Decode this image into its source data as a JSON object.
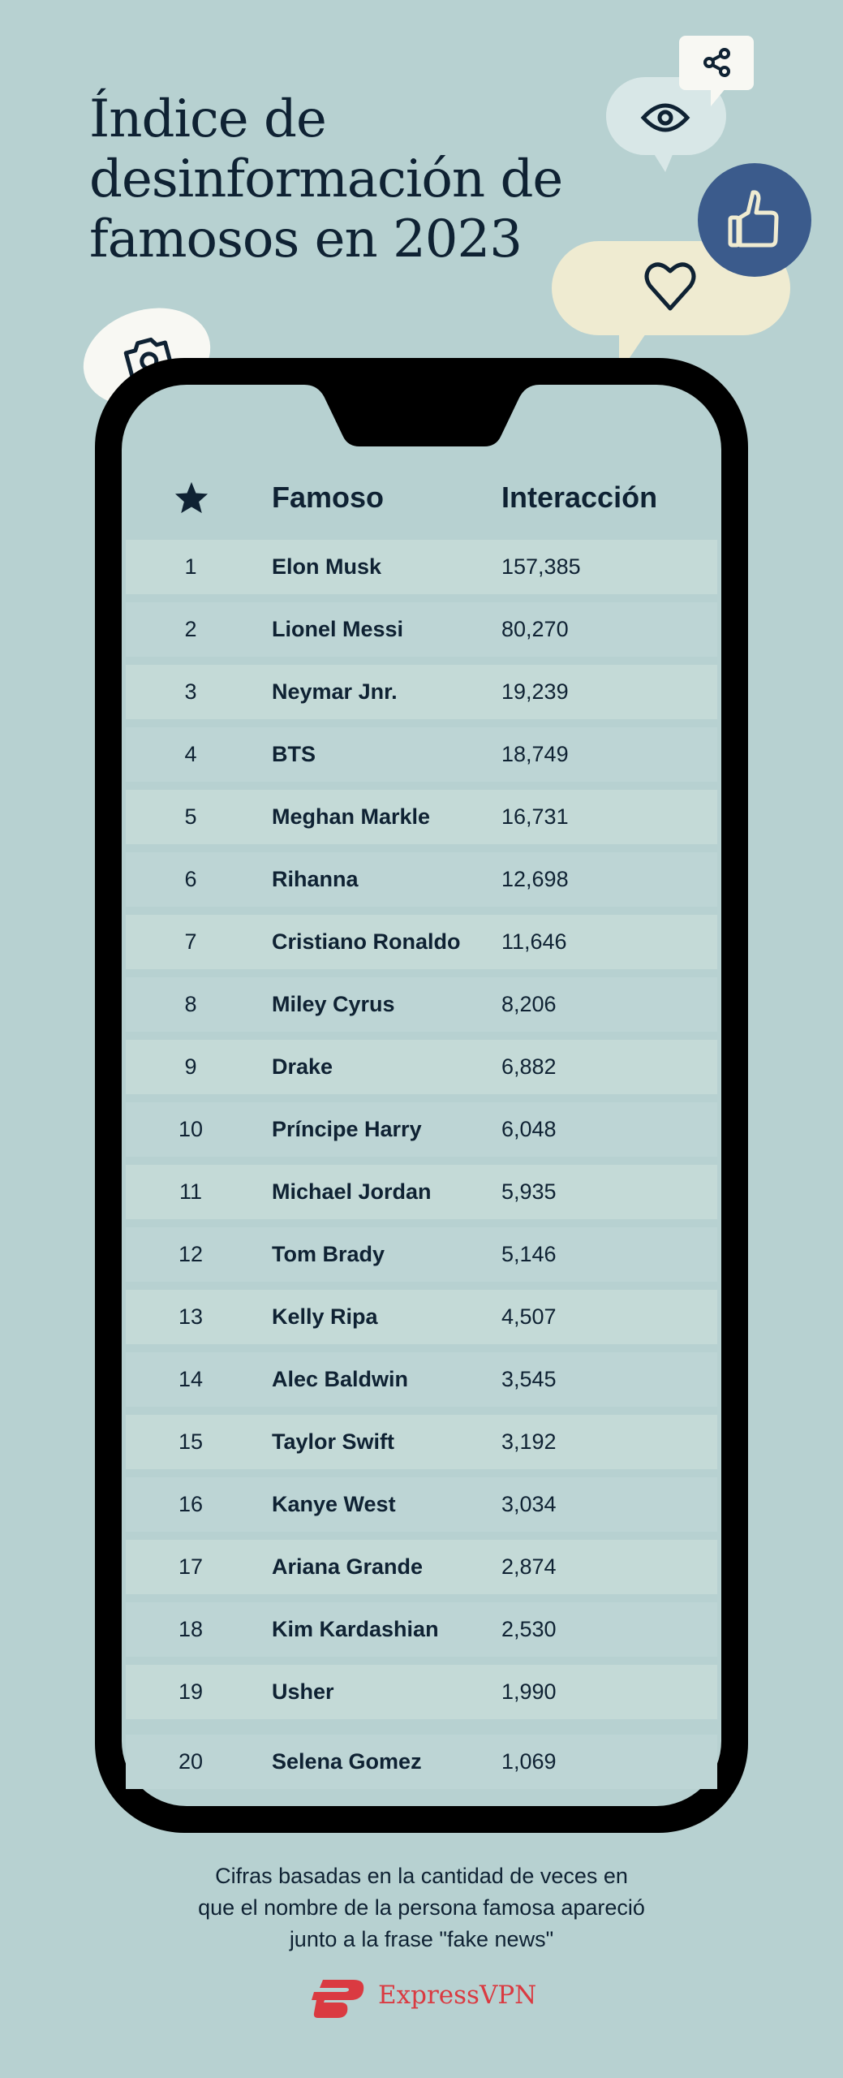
{
  "title": {
    "lines": [
      "Índice de",
      "desinformación de",
      "famosos en 2023"
    ]
  },
  "icons": {
    "share": "share-icon",
    "eye": "eye-icon",
    "thumb": "thumbs-up-icon",
    "heart": "heart-icon",
    "camera": "camera-icon",
    "star": "star-icon"
  },
  "colors": {
    "background": "#b7d1d1",
    "text": "#0f2233",
    "phone": "#000000",
    "thumb_bubble": "#3b5b8c",
    "heart_bubble": "#efebd1",
    "eye_bubble": "#d8e7e7",
    "white_bubble": "#f8f8f3",
    "brand": "#da3a41"
  },
  "table": {
    "headers": {
      "rank_icon": "star-icon",
      "name": "Famoso",
      "value": "Interacción"
    },
    "rows": [
      {
        "rank": "1",
        "name": "Elon Musk",
        "value": "157,385"
      },
      {
        "rank": "2",
        "name": "Lionel Messi",
        "value": "80,270"
      },
      {
        "rank": "3",
        "name": "Neymar Jnr.",
        "value": "19,239"
      },
      {
        "rank": "4",
        "name": "BTS",
        "value": "18,749"
      },
      {
        "rank": "5",
        "name": "Meghan Markle",
        "value": "16,731"
      },
      {
        "rank": "6",
        "name": "Rihanna",
        "value": "12,698"
      },
      {
        "rank": "7",
        "name": "Cristiano Ronaldo",
        "value": "11,646"
      },
      {
        "rank": "8",
        "name": "Miley Cyrus",
        "value": "8,206"
      },
      {
        "rank": "9",
        "name": "Drake",
        "value": "6,882"
      },
      {
        "rank": "10",
        "name": "Príncipe Harry",
        "value": "6,048"
      },
      {
        "rank": "11",
        "name": "Michael Jordan",
        "value": "5,935"
      },
      {
        "rank": "12",
        "name": "Tom Brady",
        "value": "5,146"
      },
      {
        "rank": "13",
        "name": "Kelly Ripa",
        "value": "4,507"
      },
      {
        "rank": "14",
        "name": "Alec Baldwin",
        "value": "3,545"
      },
      {
        "rank": "15",
        "name": "Taylor Swift",
        "value": "3,192"
      },
      {
        "rank": "16",
        "name": "Kanye West",
        "value": "3,034"
      },
      {
        "rank": "17",
        "name": "Ariana Grande",
        "value": "2,874"
      },
      {
        "rank": "18",
        "name": "Kim Kardashian",
        "value": "2,530"
      },
      {
        "rank": "19",
        "name": "Usher",
        "value": "1,990"
      },
      {
        "rank": "20",
        "name": "Selena Gomez",
        "value": "1,069"
      }
    ]
  },
  "footnote": {
    "lines": [
      "Cifras basadas en la cantidad de veces en",
      "que el nombre de la persona famosa apareció",
      "junto a la frase \"fake news\""
    ]
  },
  "brand": {
    "name": "ExpressVPN"
  }
}
